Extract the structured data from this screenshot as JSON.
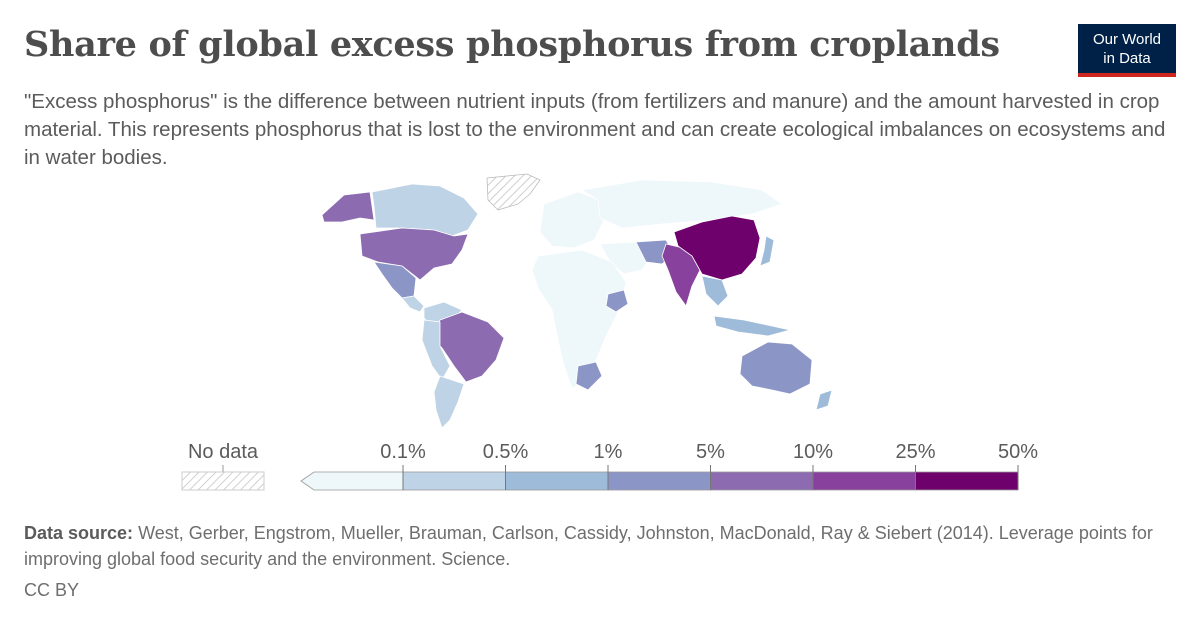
{
  "title": "Share of global excess phosphorus from croplands",
  "subtitle": "\"Excess phosphorus\" is the difference between nutrient inputs (from fertilizers and manure) and the amount harvested in crop material. This represents phosphorus that is lost to the environment and can create ecological imbalances on ecosystems and in water bodies.",
  "logo": {
    "line1": "Our World",
    "line2": "in Data",
    "bg_color": "#002147",
    "accent_color": "#ce261e"
  },
  "chart_data": {
    "type": "choropleth",
    "legend": {
      "no_data_label": "No data",
      "bins": [
        "0.1%",
        "0.5%",
        "1%",
        "5%",
        "10%",
        "25%",
        "50%"
      ],
      "colors": [
        "#eef7fa",
        "#bfd3e6",
        "#9ebcda",
        "#8c96c6",
        "#8c6bb1",
        "#88419d",
        "#6e016b"
      ]
    },
    "regions": [
      {
        "name": "China",
        "bin": 6
      },
      {
        "name": "India",
        "bin": 5
      },
      {
        "name": "United States",
        "bin": 4
      },
      {
        "name": "Brazil",
        "bin": 4
      },
      {
        "name": "Alaska",
        "bin": 4
      },
      {
        "name": "Australia",
        "bin": 3
      },
      {
        "name": "Mexico",
        "bin": 3
      },
      {
        "name": "Pakistan",
        "bin": 3
      },
      {
        "name": "Indonesia",
        "bin": 2
      },
      {
        "name": "Canada",
        "bin": 1
      },
      {
        "name": "Argentina",
        "bin": 1
      },
      {
        "name": "Russia",
        "bin": 0
      },
      {
        "name": "Africa",
        "bin": 0
      },
      {
        "name": "Europe",
        "bin": 1
      },
      {
        "name": "Greenland",
        "bin": -1
      }
    ]
  },
  "footer": {
    "source_label": "Data source:",
    "source_text": "West, Gerber, Engstrom, Mueller, Brauman, Carlson, Cassidy, Johnston, MacDonald, Ray & Siebert (2014). Leverage points for improving global food security and the environment. Science.",
    "license": "CC BY"
  }
}
